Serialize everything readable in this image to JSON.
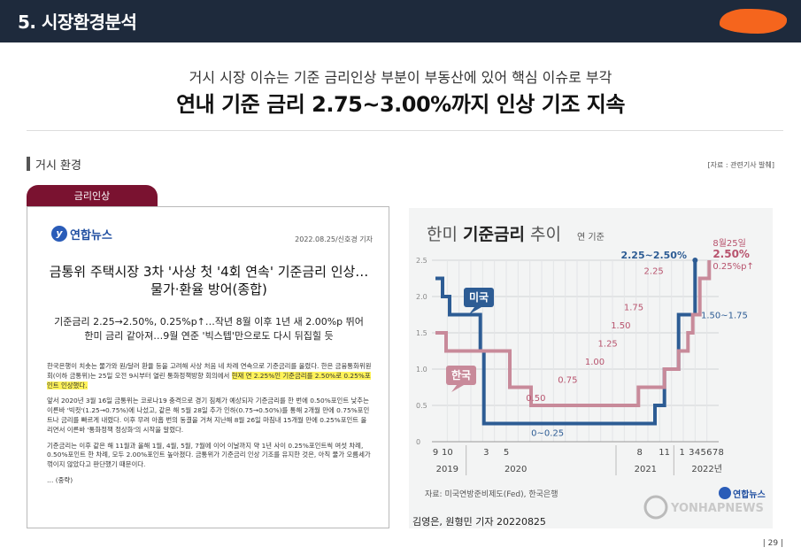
{
  "header": {
    "title": "5. 시장환경분석",
    "accent_color": "#f5651d",
    "bg_color": "#1e2a3c"
  },
  "subtitle": "거시 시장 이슈는 기준 금리인상 부분이 부동산에 있어 핵심 이슈로 부각",
  "headline": "연내 기준 금리 2.75~3.00%까지 인상 기조 지속",
  "section": {
    "title": "거시 환경",
    "source_note": "[자료 : 관련기사 발췌]"
  },
  "article": {
    "tag": "금리인상",
    "logo": "연합뉴스",
    "date_author": "2022.08.25/신호경 기자",
    "title_line1": "금통위 주택시장 3차 '사상 첫 '4회 연속' 기준금리 인상…",
    "title_line2": "물가·환율 방어(종합)",
    "sub_line1": "기준금리 2.25→2.50%, 0.25%p↑…작년 8월 이후 1년 새 2.00%p 뛰어",
    "sub_line2": "한미 금리 같아져…9월 연준 '빅스텝'만으로도 다시 뒤집힐 듯",
    "p1_a": "한국은행이 치솟는 물가와 원/달러 환율 등을 고려해 사상 처음 네 차례 연속으로 기준금리를 올렸다. 한은 금융통화위원회(이하 금통위)는 25일 오전 9시부터 열린 통화정책방향 회의에서 ",
    "p1_hl": "현재 연 2.25%인 기준금리를 2.50%로 0.25%포인트 인상했다.",
    "p2": "앞서 2020년 3월 16일 금통위는 코로나19 충격으로 경기 침체가 예상되자 기준금리를 한 번에 0.50%포인트 낮추는 이른바 '빅컷'(1.25→0.75%)에 나섰고, 같은 해 5월 28일 추가 인하(0.75→0.50%)를 통해 2개월 만에 0.75%포인트나 금리를 빠르게 내렸다. 이후 무려 아홉 번의 동결을 거쳐 지난해 8월 26일 마침내 15개월 만에 0.25%포인트 올리면서 이른바 '통화정책 정상화'의 시작을 알렸다.",
    "p3": "기준금리는 이후 같은 해 11월과 올해 1월, 4월, 5월, 7월에 이어 이날까지 약 1년 사이 0.25%포인트씩 여섯 차례, 0.50%포인트 한 차례, 모두 2.00%포인트 높아졌다. 금통위가 기준금리 인상 기조를 유지한 것은, 아직 물가 오름세가 꺾이지 않았다고 판단했기 때문이다.",
    "ellipsis": "… (중략)"
  },
  "chart_data": {
    "type": "line",
    "title_light": "한미 ",
    "title_bold": "기준금리",
    "title_tail": " 추이",
    "unit": "연 기준",
    "yticks": [
      "0",
      "0.5",
      "1.0",
      "1.5",
      "2.0",
      "2.5"
    ],
    "ylim": [
      0,
      2.5
    ],
    "x_tick_labels": [
      "9",
      "10",
      "3",
      "5",
      "8",
      "11",
      "1",
      "3",
      "4",
      "5",
      "6",
      "7",
      "8"
    ],
    "year_labels": [
      "2019",
      "2020",
      "2021",
      "2022년"
    ],
    "series": [
      {
        "name": "미국",
        "color": "#2d5c94",
        "points": [
          [
            0,
            2.25
          ],
          [
            0.6,
            2.25
          ],
          [
            0.6,
            2.0
          ],
          [
            1.2,
            2.0
          ],
          [
            1.2,
            1.75
          ],
          [
            3.8,
            1.75
          ],
          [
            3.8,
            1.25
          ],
          [
            4.1,
            1.25
          ],
          [
            4.1,
            0.25
          ],
          [
            18.6,
            0.25
          ],
          [
            18.6,
            0.5
          ],
          [
            19.4,
            0.5
          ],
          [
            19.4,
            1.0
          ],
          [
            20.6,
            1.0
          ],
          [
            20.6,
            1.75
          ],
          [
            22.0,
            1.75
          ],
          [
            22.0,
            2.5
          ]
        ]
      },
      {
        "name": "한국",
        "color": "#c88a9a",
        "points": [
          [
            0,
            1.5
          ],
          [
            0.9,
            1.5
          ],
          [
            0.9,
            1.25
          ],
          [
            6.3,
            1.25
          ],
          [
            6.3,
            0.75
          ],
          [
            8.1,
            0.75
          ],
          [
            8.1,
            0.5
          ],
          [
            17.2,
            0.5
          ],
          [
            17.2,
            0.75
          ],
          [
            19.4,
            0.75
          ],
          [
            19.4,
            1.0
          ],
          [
            20.6,
            1.0
          ],
          [
            20.6,
            1.25
          ],
          [
            21.4,
            1.25
          ],
          [
            21.4,
            1.5
          ],
          [
            21.8,
            1.5
          ],
          [
            21.8,
            1.75
          ],
          [
            22.4,
            1.75
          ],
          [
            22.4,
            2.25
          ],
          [
            23.2,
            2.25
          ],
          [
            23.2,
            2.5
          ]
        ]
      }
    ],
    "kr_step_labels": [
      "0.50",
      "0.75",
      "1.00",
      "1.25",
      "1.50",
      "1.75",
      "2.25"
    ],
    "us_zero_label": "0~0.25",
    "us_range_label": "1.50~1.75",
    "us_current_label": "2.25~2.50%",
    "kr_current_date": "8월25일",
    "kr_current_value": "2.50%",
    "kr_current_change": "0.25%p↑",
    "source": "자료: 미국연방준비제도(Fed), 한국은행",
    "logo": "연합뉴스",
    "watermark": "YONHAPNEWS"
  },
  "byline": "김영은, 원형민 기자 20220825",
  "page_number": "| 29 |"
}
